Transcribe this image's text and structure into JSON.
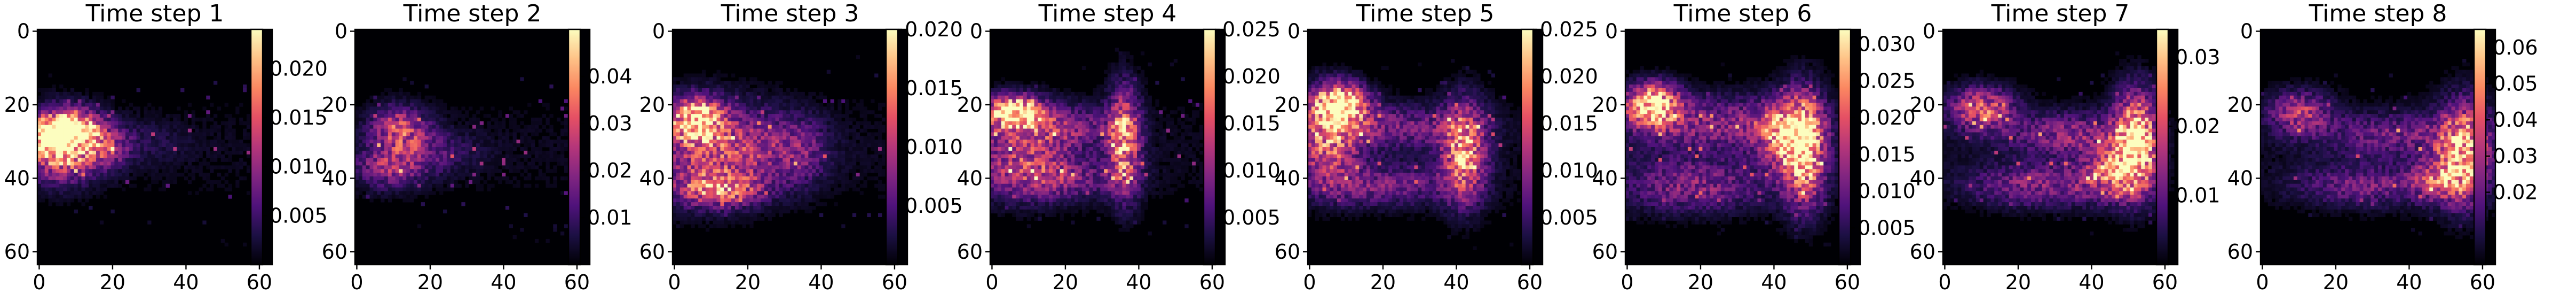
{
  "chart_data": {
    "type": "heatmap",
    "colormap": "magma",
    "grid": false,
    "x_ticks": [
      "0",
      "20",
      "40",
      "60"
    ],
    "y_ticks": [
      "0",
      "20",
      "40",
      "60"
    ],
    "x_range": [
      -0.5,
      63.5
    ],
    "y_range": [
      63.5,
      -0.5
    ],
    "panels": [
      {
        "title": "Time step 1",
        "vmin": 0,
        "vmax": 0.024,
        "cbar_ticks": [
          "0.005",
          "0.010",
          "0.015",
          "0.020"
        ],
        "features": [
          [
            6,
            31,
            6,
            6,
            0.9
          ],
          [
            4,
            28,
            4,
            3,
            1.0
          ],
          [
            11,
            26,
            4,
            3,
            0.55
          ],
          [
            18,
            32,
            4,
            4,
            0.35
          ],
          [
            24,
            30,
            10,
            4,
            0.12
          ]
        ]
      },
      {
        "title": "Time step 2",
        "vmin": 0,
        "vmax": 0.05,
        "cbar_ticks": [
          "0.01",
          "0.02",
          "0.03",
          "0.04"
        ],
        "features": [
          [
            11,
            26,
            5,
            4,
            0.45
          ],
          [
            8,
            37,
            6,
            4,
            0.35
          ],
          [
            16,
            32,
            6,
            5,
            0.22
          ],
          [
            24,
            33,
            8,
            4,
            0.1
          ]
        ]
      },
      {
        "title": "Time step 3",
        "vmin": 0,
        "vmax": 0.02,
        "cbar_ticks": [
          "0.005",
          "0.010",
          "0.015",
          "0.020"
        ],
        "features": [
          [
            9,
            33,
            11,
            9,
            0.45
          ],
          [
            6,
            24,
            5,
            4,
            0.85
          ],
          [
            12,
            43,
            8,
            3,
            0.55
          ],
          [
            27,
            32,
            9,
            7,
            0.25
          ],
          [
            36,
            33,
            4,
            6,
            0.15
          ]
        ]
      },
      {
        "title": "Time step 4",
        "vmin": 0,
        "vmax": 0.025,
        "cbar_ticks": [
          "0.005",
          "0.010",
          "0.015",
          "0.020",
          "0.025"
        ],
        "features": [
          [
            8,
            33,
            9,
            8,
            0.4
          ],
          [
            6,
            22,
            5,
            3,
            0.95
          ],
          [
            36,
            30,
            3,
            10,
            0.7
          ],
          [
            20,
            26,
            10,
            4,
            0.3
          ],
          [
            18,
            40,
            12,
            4,
            0.3
          ]
        ]
      },
      {
        "title": "Time step 5",
        "vmin": 0,
        "vmax": 0.025,
        "cbar_ticks": [
          "0.005",
          "0.010",
          "0.015",
          "0.020",
          "0.025"
        ],
        "features": [
          [
            8,
            20,
            5,
            4,
            1.0
          ],
          [
            5,
            30,
            6,
            8,
            0.55
          ],
          [
            42,
            33,
            4,
            9,
            0.75
          ],
          [
            24,
            26,
            14,
            4,
            0.3
          ],
          [
            20,
            42,
            14,
            4,
            0.3
          ]
        ]
      },
      {
        "title": "Time step 6",
        "vmin": 0,
        "vmax": 0.032,
        "cbar_ticks": [
          "0.005",
          "0.010",
          "0.015",
          "0.020",
          "0.025",
          "0.030"
        ],
        "features": [
          [
            7,
            20,
            5,
            4,
            1.0
          ],
          [
            48,
            32,
            4,
            10,
            0.95
          ],
          [
            42,
            28,
            5,
            6,
            0.55
          ],
          [
            24,
            25,
            16,
            5,
            0.35
          ],
          [
            18,
            42,
            14,
            5,
            0.35
          ]
        ]
      },
      {
        "title": "Time step 7",
        "vmin": 0,
        "vmax": 0.034,
        "cbar_ticks": [
          "0.01",
          "0.02",
          "0.03"
        ],
        "features": [
          [
            52,
            30,
            4,
            9,
            0.95
          ],
          [
            10,
            21,
            6,
            4,
            0.6
          ],
          [
            34,
            28,
            12,
            4,
            0.35
          ],
          [
            26,
            42,
            14,
            4,
            0.35
          ],
          [
            46,
            38,
            6,
            5,
            0.5
          ]
        ]
      },
      {
        "title": "Time step 8",
        "vmin": 0,
        "vmax": 0.065,
        "cbar_ticks": [
          "0.02",
          "0.03",
          "0.04",
          "0.05",
          "0.06"
        ],
        "features": [
          [
            55,
            33,
            5,
            9,
            0.8
          ],
          [
            10,
            22,
            6,
            4,
            0.45
          ],
          [
            36,
            28,
            14,
            4,
            0.3
          ],
          [
            28,
            42,
            14,
            4,
            0.3
          ],
          [
            48,
            40,
            5,
            4,
            0.4
          ]
        ]
      }
    ]
  }
}
